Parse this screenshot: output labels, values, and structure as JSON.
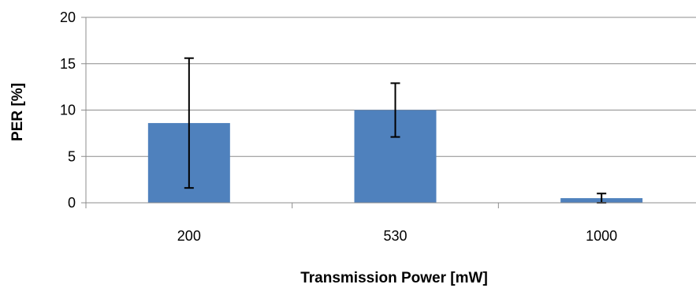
{
  "chart_data": {
    "type": "bar",
    "categories": [
      "200",
      "530",
      "1000"
    ],
    "series": [
      {
        "values": [
          8.6,
          10.0,
          0.5
        ],
        "error_high": [
          15.6,
          12.9,
          1.0
        ],
        "error_low": [
          1.6,
          7.1,
          0.0
        ],
        "color": "#4f81bd"
      }
    ],
    "title": "",
    "xlabel": "Transmission Power [mW]",
    "ylabel": "PER [%]",
    "ylim": [
      0,
      20
    ],
    "yticks": [
      "0",
      "5",
      "10",
      "15",
      "20"
    ],
    "grid": true,
    "gridline_color": "#8c8c8c",
    "legend": false
  }
}
